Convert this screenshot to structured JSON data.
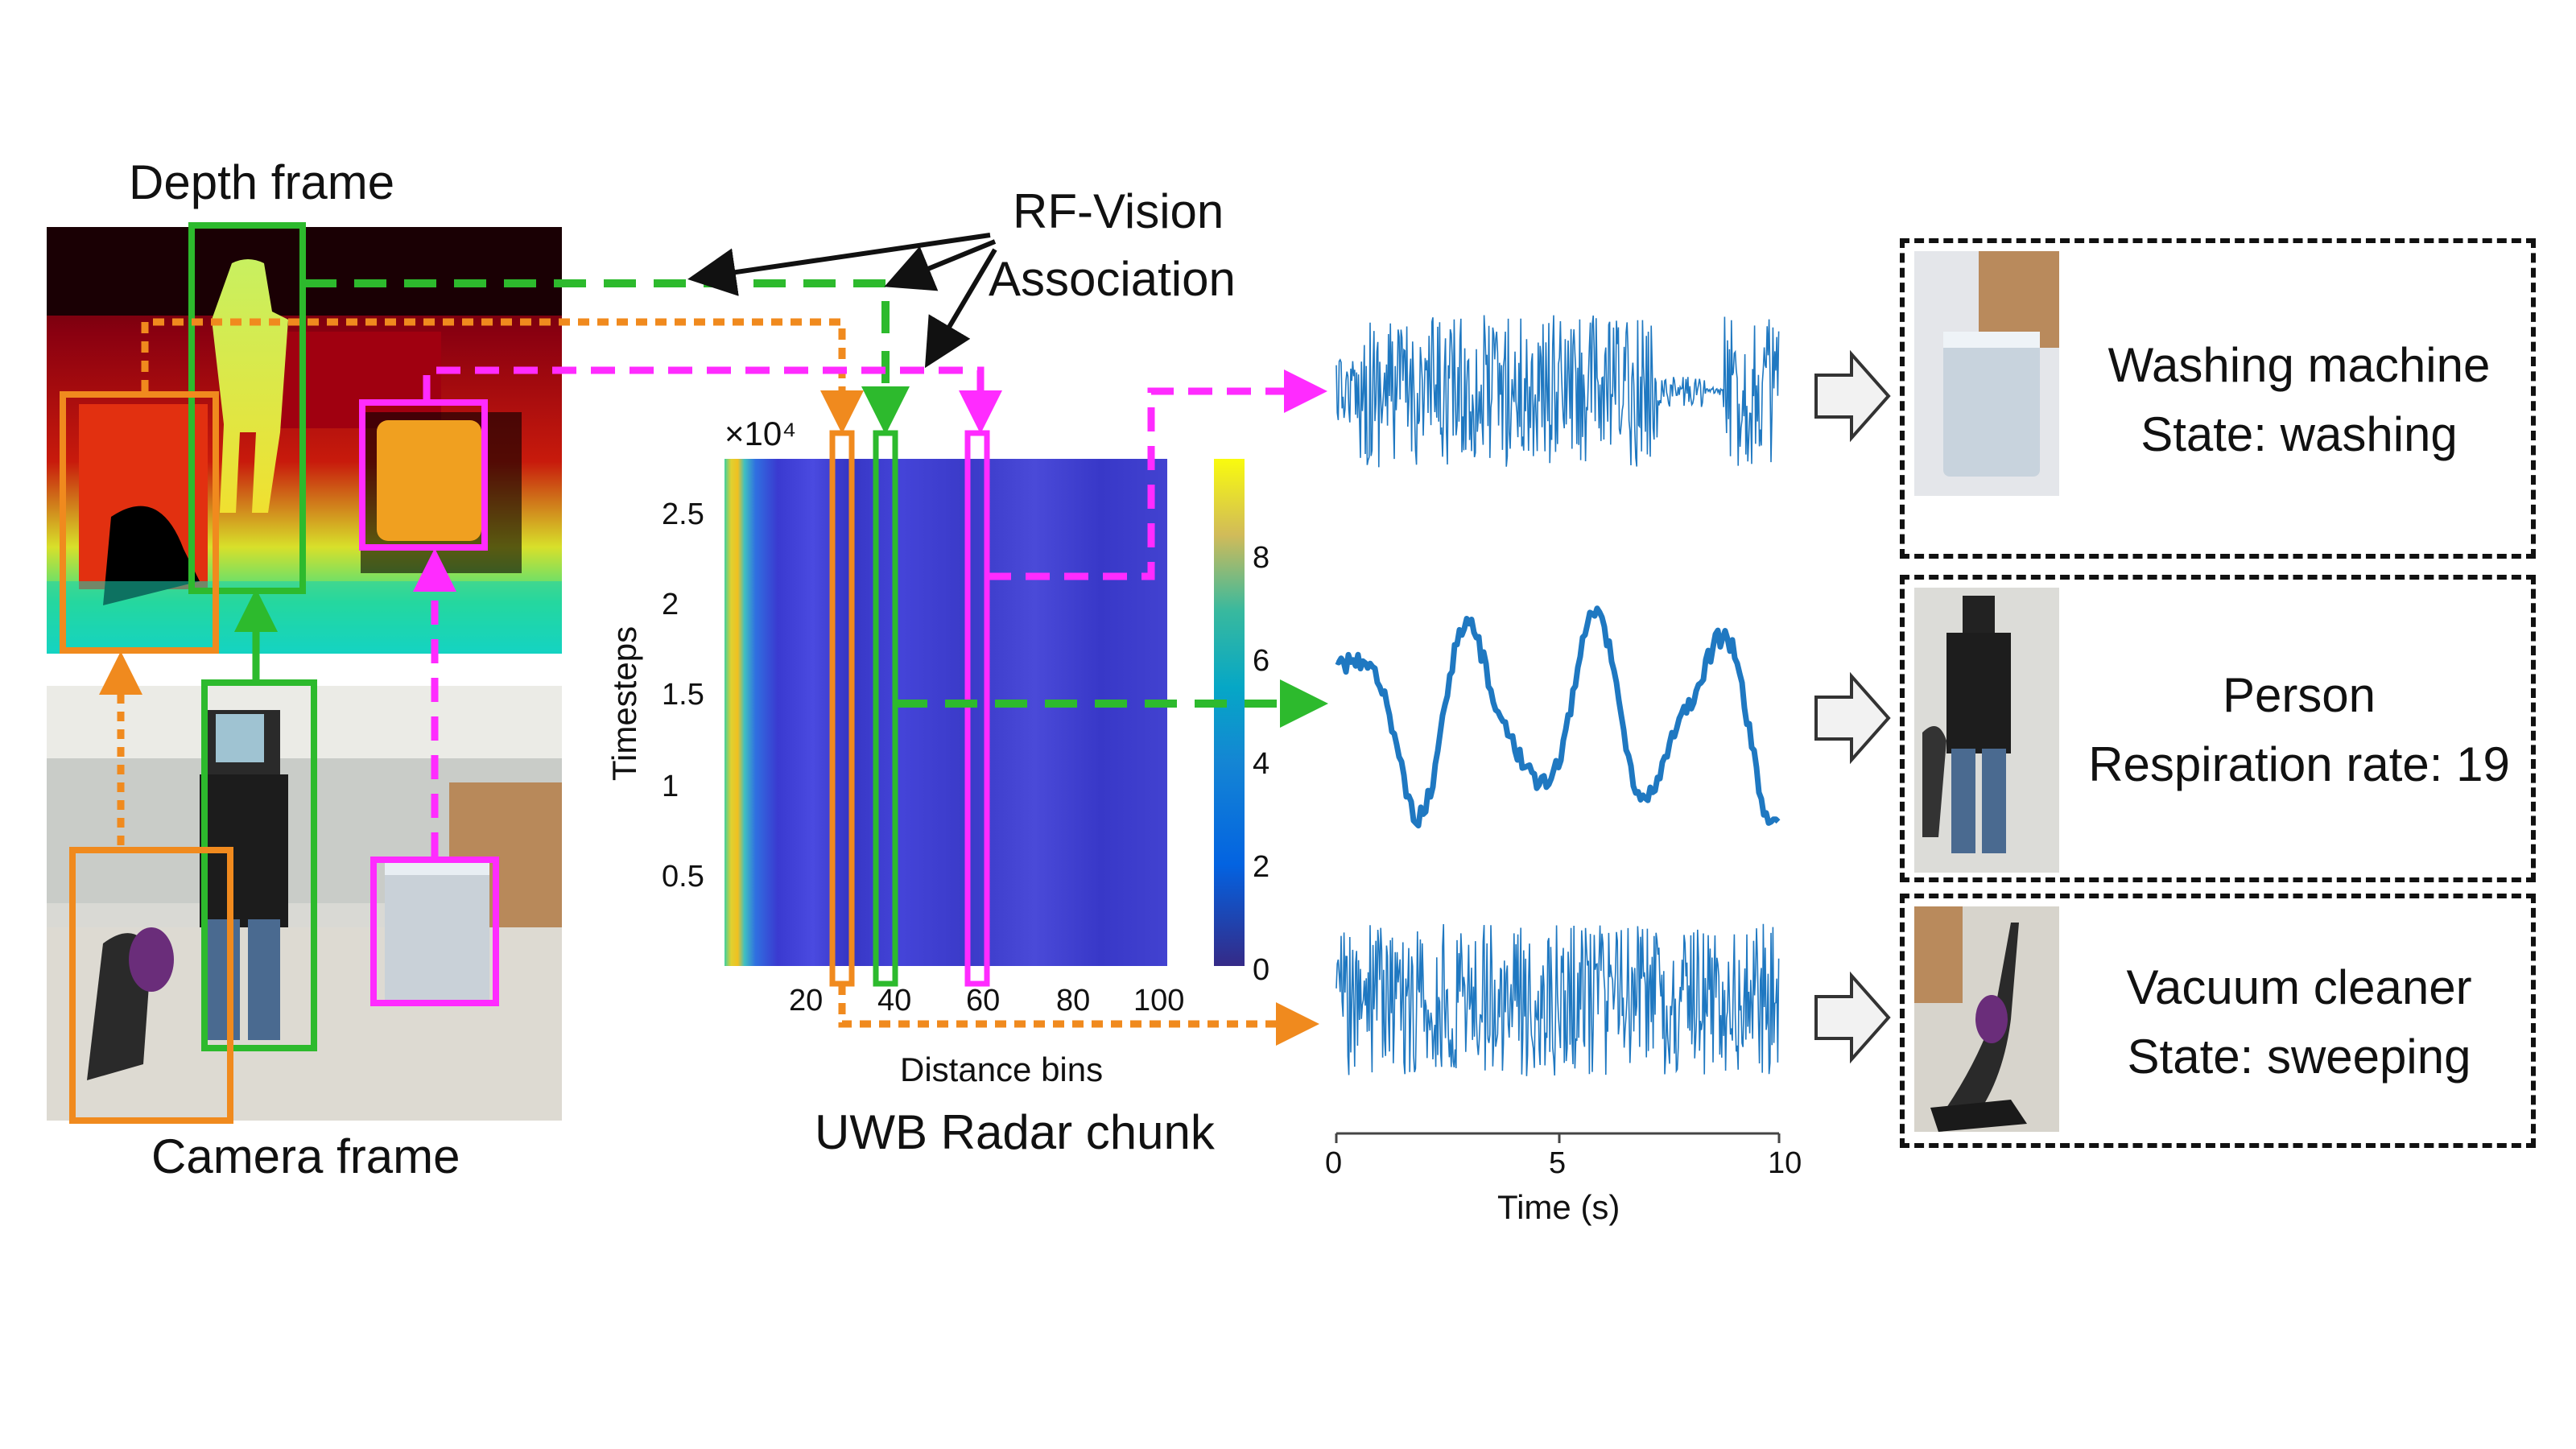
{
  "labels": {
    "depth_frame": "Depth frame",
    "camera_frame": "Camera frame",
    "rf_vision_line1": "RF-Vision",
    "rf_vision_line2": "Association",
    "uwb_radar_chunk": "UWB Radar chunk",
    "distance_bins": "Distance bins",
    "timesteps": "Timesteps",
    "time_axis": "Time (s)",
    "exponent": "×10⁴"
  },
  "heatmap": {
    "y_ticks": [
      "2.5",
      "2",
      "1.5",
      "1",
      "0.5"
    ],
    "x_ticks": [
      "20",
      "40",
      "60",
      "80",
      "100"
    ],
    "colorbar_ticks": [
      "8",
      "6",
      "4",
      "2",
      "0"
    ]
  },
  "signal_axis": {
    "x_ticks": [
      "0",
      "5",
      "10"
    ]
  },
  "results": [
    {
      "object": "Washing machine",
      "state": "State: washing",
      "icon": "washing-machine-thumbnail"
    },
    {
      "object": "Person",
      "state": "Respiration rate: 19",
      "icon": "person-thumbnail"
    },
    {
      "object": "Vacuum cleaner",
      "state": "State: sweeping",
      "icon": "vacuum-cleaner-thumbnail"
    }
  ],
  "colors": {
    "orange": "#F08A1E",
    "green": "#2DBA2D",
    "magenta": "#FF2BFF",
    "signal_blue": "#1F78C1",
    "heatmap_base": "#3E3EC8"
  }
}
